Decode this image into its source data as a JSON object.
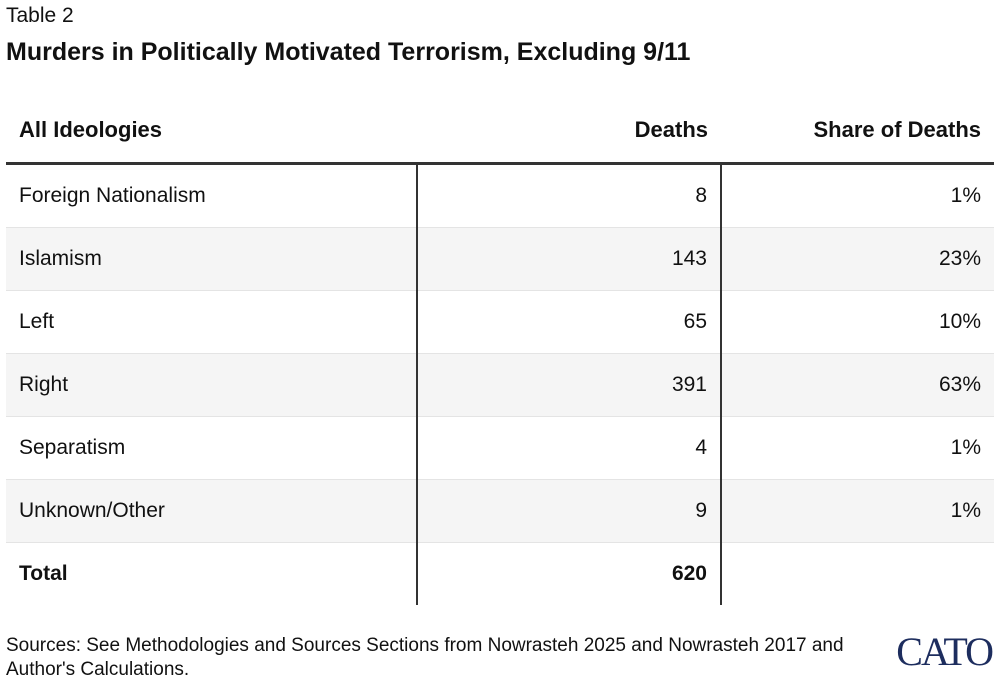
{
  "header": {
    "label": "Table 2",
    "title": "Murders in Politically Motivated Terrorism, Excluding 9/11"
  },
  "table": {
    "columns": [
      "All Ideologies",
      "Deaths",
      "Share of Deaths"
    ],
    "rows": [
      [
        "Foreign Nationalism",
        8,
        "1%"
      ],
      [
        "Islamism",
        143,
        "23%"
      ],
      [
        "Left",
        65,
        "10%"
      ],
      [
        "Right",
        391,
        "63%"
      ],
      [
        "Separatism",
        4,
        "1%"
      ],
      [
        "Unknown/Other",
        9,
        "1%"
      ]
    ],
    "total": [
      "Total",
      620
    ]
  },
  "footer": {
    "sources": "Sources: See Methodologies and Sources Sections from Nowrasteh 2025 and Nowrasteh 2017 and Author's Calculations.",
    "logo": "CATO"
  }
}
